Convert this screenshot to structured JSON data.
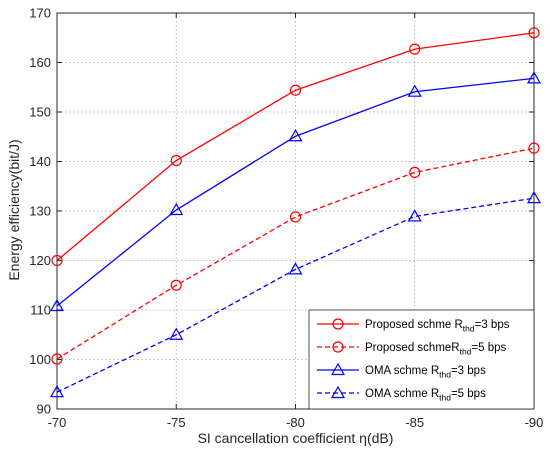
{
  "chart_data": {
    "type": "line",
    "title": "",
    "xlabel": "SI cancellation coefficient η(dB)",
    "ylabel": "Energy efficiency(bit/J)",
    "x": [
      -70,
      -75,
      -80,
      -85,
      -90
    ],
    "x_tick_labels": [
      "-70",
      "-75",
      "-80",
      "-85",
      "-90"
    ],
    "y_tick_labels": [
      "90",
      "100",
      "110",
      "120",
      "130",
      "140",
      "150",
      "160",
      "170"
    ],
    "ylim": [
      90,
      170
    ],
    "x_reversed": true,
    "grid": true,
    "legend_position": "bottom-right",
    "series": [
      {
        "name": "Proposed schme R_thd=3 bps",
        "legend": {
          "pre": "Proposed schme R",
          "sub": "thd",
          "post": "=3 bps"
        },
        "values": [
          120,
          140.2,
          154.4,
          162.7,
          166
        ],
        "color": "#ff0000",
        "dashed": false,
        "marker": "circle"
      },
      {
        "name": "Proposed schmeR_thd=5 bps",
        "legend": {
          "pre": "Proposed schmeR",
          "sub": "thd",
          "post": "=5 bps"
        },
        "values": [
          100.1,
          115,
          128.8,
          137.8,
          142.7
        ],
        "color": "#ff0000",
        "dashed": true,
        "marker": "circle"
      },
      {
        "name": "OMA schme R_thd=3 bps",
        "legend": {
          "pre": "OMA schme R",
          "sub": "thd",
          "post": "=3 bps"
        },
        "values": [
          110.8,
          130.2,
          145.1,
          154.1,
          156.8
        ],
        "color": "#0000ff",
        "dashed": false,
        "marker": "triangle"
      },
      {
        "name": "OMA schme R_thd=5 bps",
        "legend": {
          "pre": "OMA schme R",
          "sub": "thd",
          "post": "=5 bps"
        },
        "values": [
          93.4,
          105,
          118.2,
          128.9,
          132.6
        ],
        "color": "#0000ff",
        "dashed": true,
        "marker": "triangle"
      }
    ]
  }
}
